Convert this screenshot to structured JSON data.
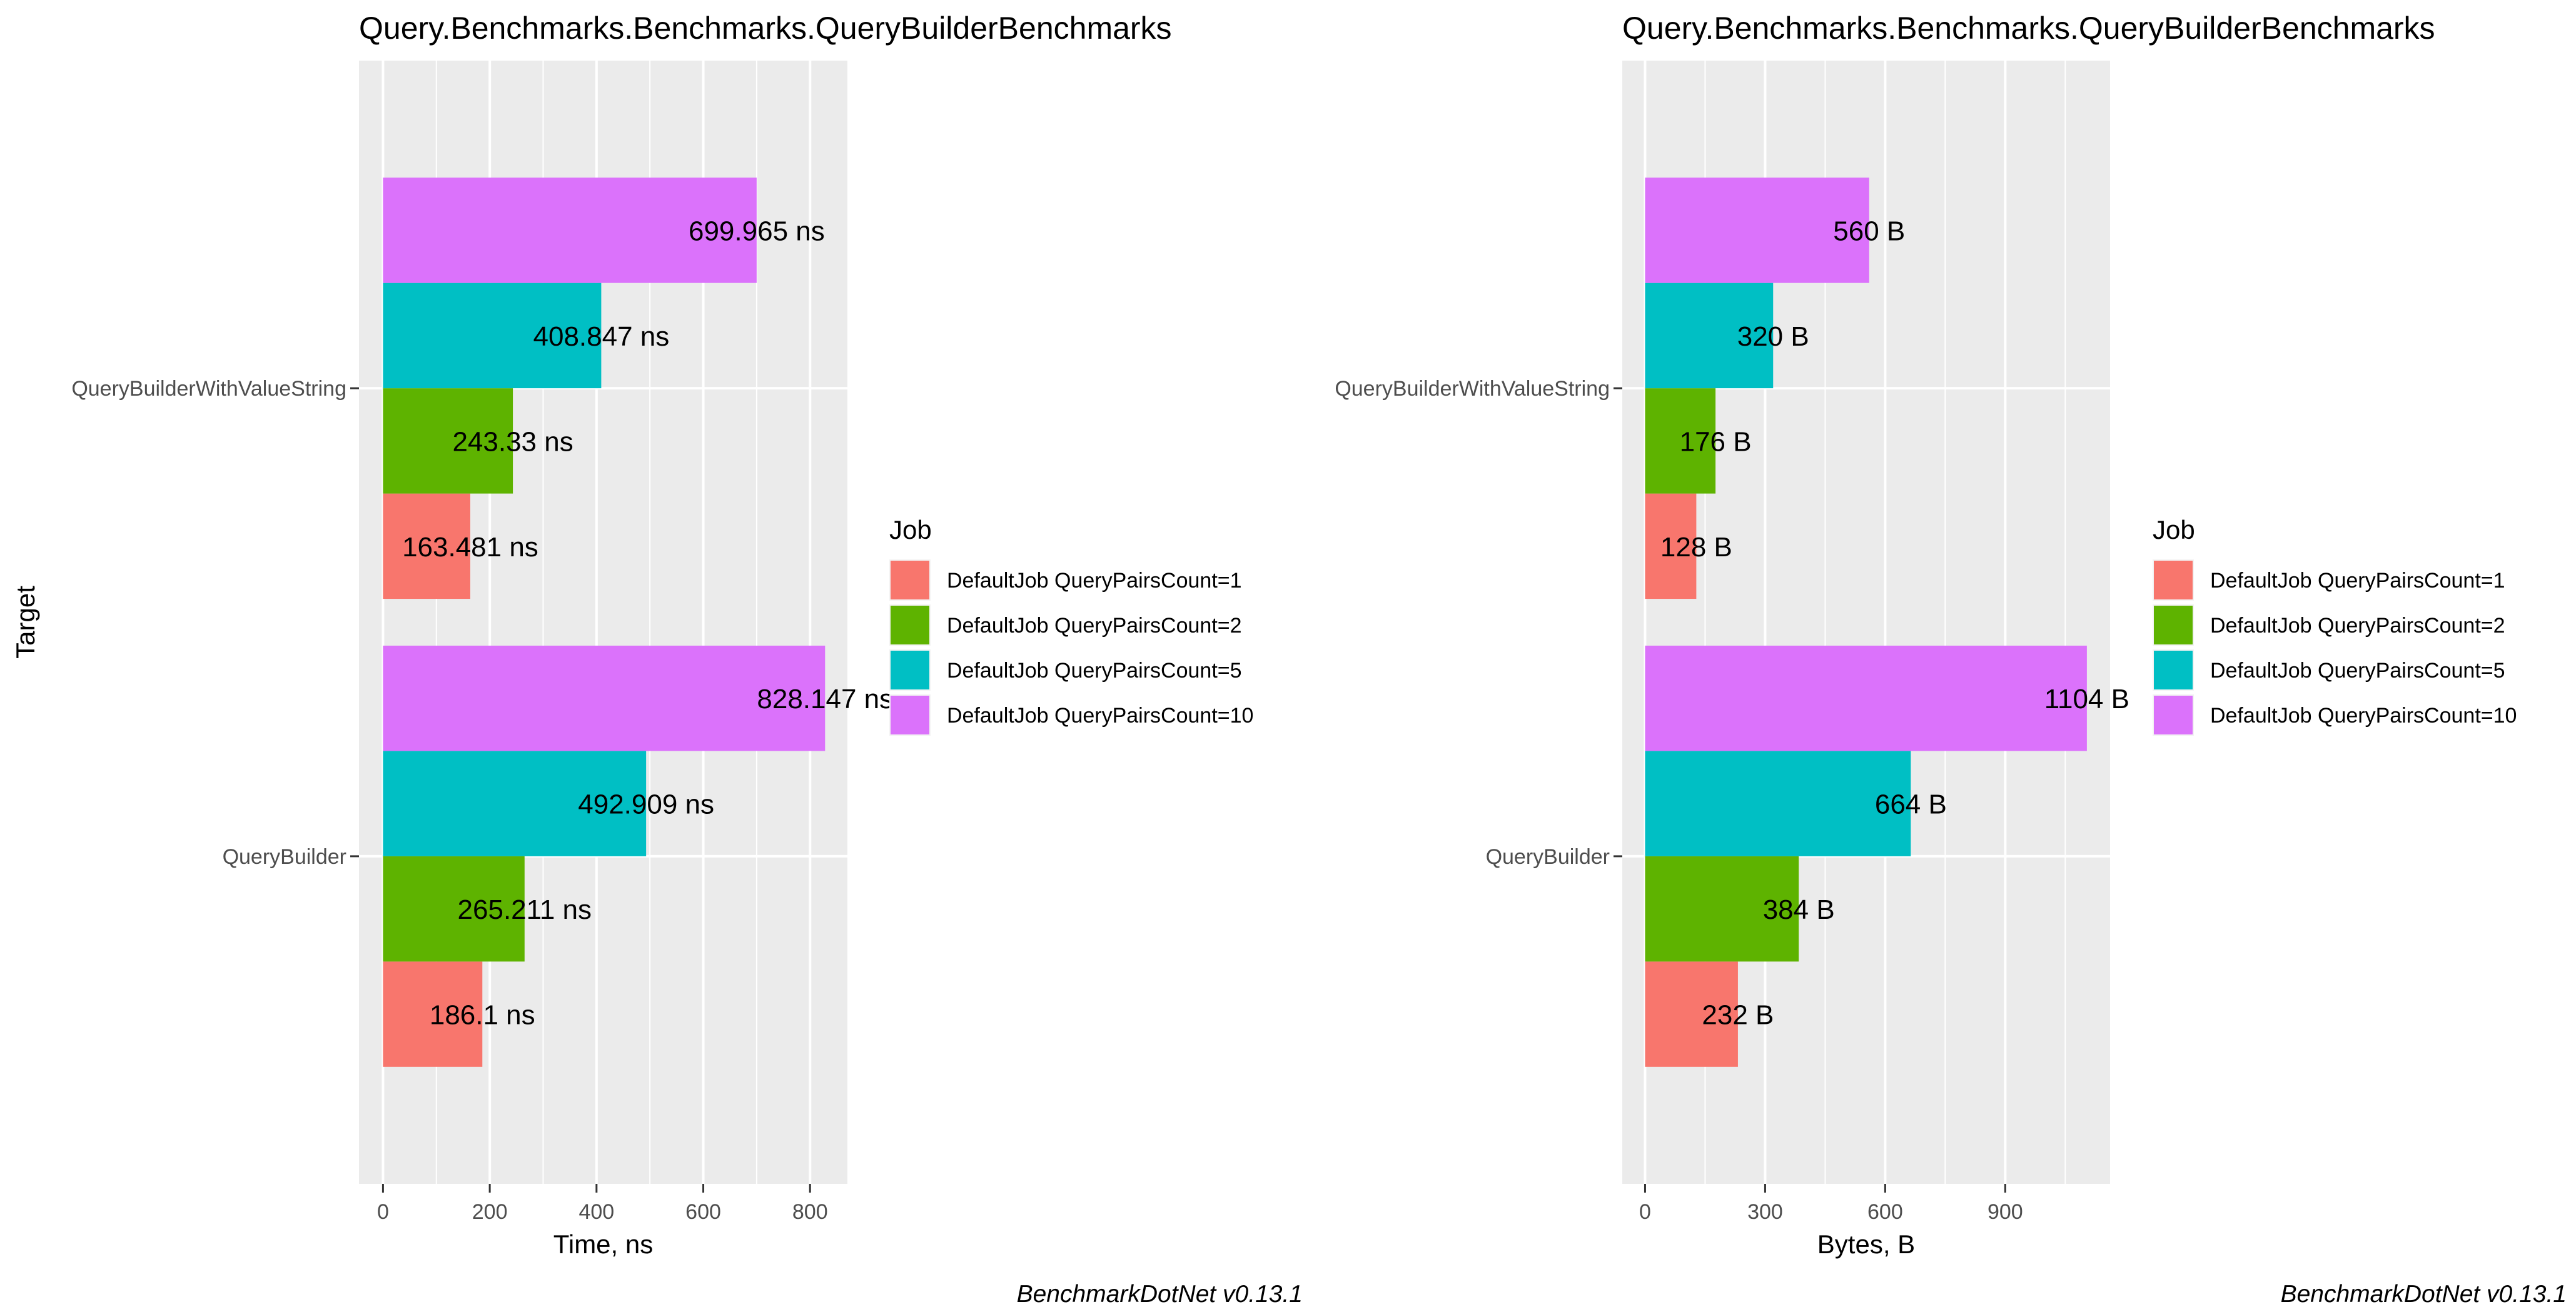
{
  "chart_data": [
    {
      "type": "bar",
      "orientation": "horizontal",
      "title": "Query.Benchmarks.Benchmarks.QueryBuilderBenchmarks",
      "xlabel": "Time, ns",
      "ylabel": "Target",
      "caption": "BenchmarkDotNet v0.13.1",
      "categories": [
        "QueryBuilderWithValueString",
        "QueryBuilder"
      ],
      "xlim": [
        -45,
        870
      ],
      "xticks": [
        0,
        200,
        400,
        600,
        800
      ],
      "grid": true,
      "legend": {
        "title": "Job",
        "placement": "right"
      },
      "series": [
        {
          "name": "DefaultJob QueryPairsCount=1",
          "color": "#F8766D",
          "values": [
            163.481,
            186.1
          ],
          "labels": [
            "163.481 ns",
            "186.1 ns"
          ]
        },
        {
          "name": "DefaultJob QueryPairsCount=2",
          "color": "#5EB300",
          "values": [
            243.33,
            265.211
          ],
          "labels": [
            "243.33 ns",
            "265.211 ns"
          ]
        },
        {
          "name": "DefaultJob QueryPairsCount=5",
          "color": "#00BFC4",
          "values": [
            408.847,
            492.909
          ],
          "labels": [
            "408.847 ns",
            "492.909 ns"
          ]
        },
        {
          "name": "DefaultJob QueryPairsCount=10",
          "color": "#DB72FB",
          "values": [
            699.965,
            828.147
          ],
          "labels": [
            "699.965 ns",
            "828.147 ns"
          ]
        }
      ]
    },
    {
      "type": "bar",
      "orientation": "horizontal",
      "title": "Query.Benchmarks.Benchmarks.QueryBuilderBenchmarks",
      "xlabel": "Bytes, B",
      "ylabel": "",
      "caption": "BenchmarkDotNet v0.13.1",
      "categories": [
        "QueryBuilderWithValueString",
        "QueryBuilder"
      ],
      "xlim": [
        -57,
        1162
      ],
      "xticks": [
        0,
        300,
        600,
        900
      ],
      "grid": true,
      "legend": {
        "title": "Job",
        "placement": "right"
      },
      "series": [
        {
          "name": "DefaultJob QueryPairsCount=1",
          "color": "#F8766D",
          "values": [
            128,
            232
          ],
          "labels": [
            "128 B",
            "232 B"
          ]
        },
        {
          "name": "DefaultJob QueryPairsCount=2",
          "color": "#5EB300",
          "values": [
            176,
            384
          ],
          "labels": [
            "176 B",
            "384 B"
          ]
        },
        {
          "name": "DefaultJob QueryPairsCount=5",
          "color": "#00BFC4",
          "values": [
            320,
            664
          ],
          "labels": [
            "320 B",
            "664 B"
          ]
        },
        {
          "name": "DefaultJob QueryPairsCount=10",
          "color": "#DB72FB",
          "values": [
            560,
            1104
          ],
          "labels": [
            "560 B",
            "1104 B"
          ]
        }
      ]
    }
  ]
}
